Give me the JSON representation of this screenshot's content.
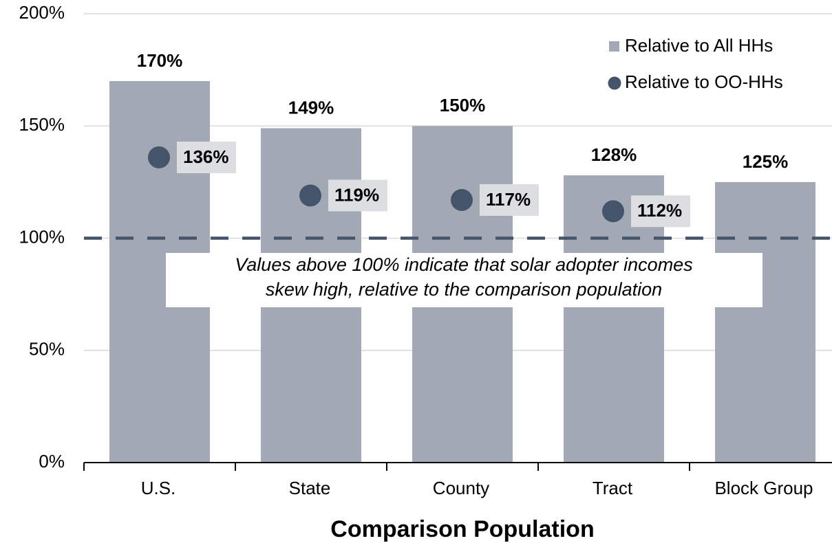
{
  "chart_data": {
    "type": "bar",
    "x_label": "Comparison Population",
    "categories": [
      "U.S.",
      "State",
      "County",
      "Tract",
      "Block Group"
    ],
    "series": [
      {
        "name": "Relative to All HHs",
        "color": "#a2a9b4",
        "marker": "bar",
        "values": [
          170,
          149,
          150,
          128,
          125
        ],
        "value_labels": [
          "170%",
          "149%",
          "150%",
          "128%",
          "125%"
        ]
      },
      {
        "name": "Relative to OO-HHs",
        "color": "#44546a",
        "marker": "dot",
        "values": [
          136,
          119,
          117,
          112,
          null
        ],
        "value_labels": [
          "136%",
          "119%",
          "117%",
          "112%",
          null
        ]
      }
    ],
    "ylim": [
      0,
      200
    ],
    "yticks": [
      {
        "value": 0,
        "label": "0%"
      },
      {
        "value": 50,
        "label": "50%"
      },
      {
        "value": 100,
        "label": "100%"
      },
      {
        "value": 150,
        "label": "150%"
      },
      {
        "value": 200,
        "label": "200%"
      }
    ],
    "grid": true,
    "reference_line": 100,
    "annotation": [
      "Values above 100% indicate that solar adopter incomes",
      "skew high, relative to the comparison population"
    ],
    "legend": "upper right"
  }
}
